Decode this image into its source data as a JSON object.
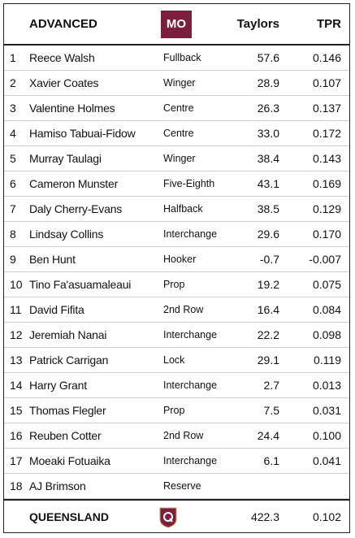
{
  "header": {
    "title": "ADVANCED",
    "team_code": "MO",
    "col_taylors": "Taylors",
    "col_tpr": "TPR"
  },
  "rows": [
    {
      "num": "1",
      "name": "Reece Walsh",
      "position": "Fullback",
      "taylors": "57.6",
      "tpr": "0.146"
    },
    {
      "num": "2",
      "name": "Xavier Coates",
      "position": "Winger",
      "taylors": "28.9",
      "tpr": "0.107"
    },
    {
      "num": "3",
      "name": "Valentine Holmes",
      "position": "Centre",
      "taylors": "26.3",
      "tpr": "0.137"
    },
    {
      "num": "4",
      "name": "Hamiso Tabuai-Fidow",
      "position": "Centre",
      "taylors": "33.0",
      "tpr": "0.172"
    },
    {
      "num": "5",
      "name": "Murray Taulagi",
      "position": "Winger",
      "taylors": "38.4",
      "tpr": "0.143"
    },
    {
      "num": "6",
      "name": "Cameron Munster",
      "position": "Five-Eighth",
      "taylors": "43.1",
      "tpr": "0.169"
    },
    {
      "num": "7",
      "name": "Daly Cherry-Evans",
      "position": "Halfback",
      "taylors": "38.5",
      "tpr": "0.129"
    },
    {
      "num": "8",
      "name": "Lindsay Collins",
      "position": "Interchange",
      "taylors": "29.6",
      "tpr": "0.170"
    },
    {
      "num": "9",
      "name": "Ben Hunt",
      "position": "Hooker",
      "taylors": "-0.7",
      "tpr": "-0.007"
    },
    {
      "num": "10",
      "name": "Tino Fa'asuamaleaui",
      "position": "Prop",
      "taylors": "19.2",
      "tpr": "0.075"
    },
    {
      "num": "11",
      "name": "David Fifita",
      "position": "2nd Row",
      "taylors": "16.4",
      "tpr": "0.084"
    },
    {
      "num": "12",
      "name": "Jeremiah Nanai",
      "position": "Interchange",
      "taylors": "22.2",
      "tpr": "0.098"
    },
    {
      "num": "13",
      "name": "Patrick Carrigan",
      "position": "Lock",
      "taylors": "29.1",
      "tpr": "0.119"
    },
    {
      "num": "14",
      "name": "Harry Grant",
      "position": "Interchange",
      "taylors": "2.7",
      "tpr": "0.013"
    },
    {
      "num": "15",
      "name": "Thomas Flegler",
      "position": "Prop",
      "taylors": "7.5",
      "tpr": "0.031"
    },
    {
      "num": "16",
      "name": "Reuben Cotter",
      "position": "2nd Row",
      "taylors": "24.4",
      "tpr": "0.100"
    },
    {
      "num": "17",
      "name": "Moeaki Fotuaika",
      "position": "Interchange",
      "taylors": "6.1",
      "tpr": "0.041"
    },
    {
      "num": "18",
      "name": "AJ Brimson",
      "position": "Reserve"
    }
  ],
  "footer": {
    "team": "QUEENSLAND",
    "taylors": "422.3",
    "tpr": "0.102"
  }
}
